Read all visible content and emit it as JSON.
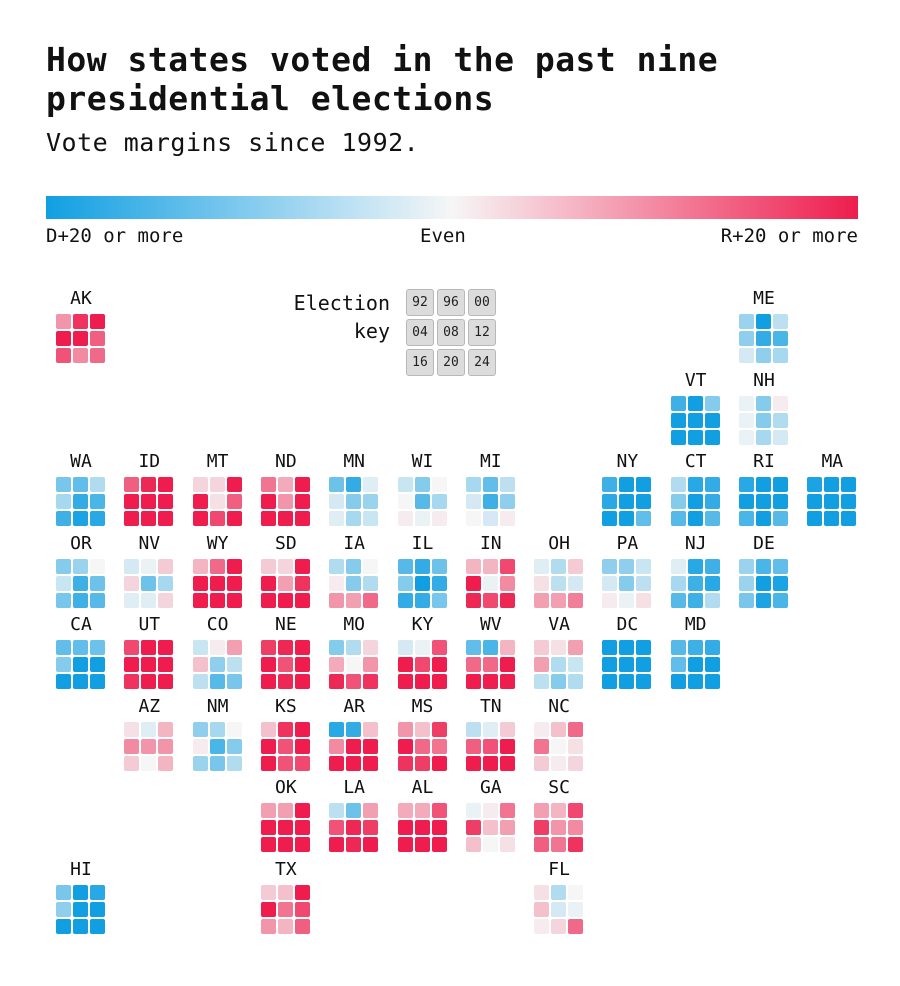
{
  "title": "How states voted in the past nine presidential elections",
  "subtitle": "Vote margins since 1992.",
  "legend": {
    "left": "D+20 or more",
    "middle": "Even",
    "right": "R+20 or more"
  },
  "key": {
    "label_line1": "Election",
    "label_line2": "key",
    "years": [
      "92",
      "96",
      "00",
      "04",
      "08",
      "12",
      "16",
      "20",
      "24"
    ]
  },
  "colors": {
    "dem": "#119fe2",
    "even": "#f6f6f6",
    "rep": "#ee1d4d"
  },
  "chart_data": {
    "type": "heatmap",
    "title": "How states voted in the past nine presidential elections",
    "subtitle": "Vote margins since 1992.",
    "value_unit": "margin (negative = D, positive = R), clamped at ±20",
    "years": [
      1992,
      1996,
      2000,
      2004,
      2008,
      2012,
      2016,
      2020,
      2024
    ],
    "states": [
      {
        "abbr": "AK",
        "col": 0,
        "row": 0,
        "margins": [
          9,
          18,
          20,
          20,
          20,
          14,
          15,
          10,
          13
        ]
      },
      {
        "abbr": "ME",
        "col": 10,
        "row": 0,
        "margins": [
          -8,
          -20,
          -5,
          -9,
          -17,
          -15,
          -3,
          -9,
          -7
        ]
      },
      {
        "abbr": "VT",
        "col": 9,
        "row": 1,
        "margins": [
          -16,
          -22,
          -10,
          -20,
          -37,
          -36,
          -26,
          -35,
          -32
        ]
      },
      {
        "abbr": "NH",
        "col": 10,
        "row": 1,
        "margins": [
          -1,
          -10,
          1,
          -1,
          -10,
          -6,
          -1,
          -7,
          -3
        ]
      },
      {
        "abbr": "WA",
        "col": 0,
        "row": 2,
        "margins": [
          -11,
          -13,
          -6,
          -7,
          -17,
          -15,
          -16,
          -19,
          -18
        ]
      },
      {
        "abbr": "ID",
        "col": 1,
        "row": 2,
        "margins": [
          14,
          19,
          40,
          38,
          25,
          32,
          32,
          31,
          36
        ]
      },
      {
        "abbr": "MT",
        "col": 2,
        "row": 2,
        "margins": [
          3,
          3,
          25,
          20,
          2,
          14,
          20,
          16,
          20
        ]
      },
      {
        "abbr": "ND",
        "col": 3,
        "row": 2,
        "margins": [
          12,
          7,
          28,
          27,
          9,
          20,
          36,
          33,
          36
        ]
      },
      {
        "abbr": "MN",
        "col": 4,
        "row": 2,
        "margins": [
          -12,
          -17,
          -2,
          -3,
          -10,
          -8,
          -2,
          -7,
          -4
        ]
      },
      {
        "abbr": "WI",
        "col": 5,
        "row": 2,
        "margins": [
          -4,
          -10,
          0,
          0,
          -14,
          -7,
          1,
          -1,
          1
        ]
      },
      {
        "abbr": "MI",
        "col": 6,
        "row": 2,
        "margins": [
          -7,
          -13,
          -5,
          -3,
          -16,
          -9,
          0,
          -3,
          1
        ]
      },
      {
        "abbr": "NY",
        "col": 8,
        "row": 2,
        "margins": [
          -16,
          -29,
          -25,
          -18,
          -27,
          -28,
          -22,
          -23,
          -13
        ]
      },
      {
        "abbr": "CT",
        "col": 9,
        "row": 2,
        "margins": [
          -6,
          -18,
          -17,
          -10,
          -22,
          -17,
          -14,
          -20,
          -14
        ]
      },
      {
        "abbr": "RI",
        "col": 10,
        "row": 2,
        "margins": [
          -18,
          -33,
          -29,
          -20,
          -28,
          -27,
          -15,
          -21,
          -14
        ]
      },
      {
        "abbr": "MA",
        "col": 11,
        "row": 2,
        "margins": [
          -19,
          -33,
          -27,
          -25,
          -26,
          -23,
          -27,
          -33,
          -25
        ]
      },
      {
        "abbr": "OR",
        "col": 0,
        "row": 3,
        "margins": [
          -10,
          -8,
          0,
          -4,
          -16,
          -12,
          -11,
          -16,
          -14
        ]
      },
      {
        "abbr": "NV",
        "col": 1,
        "row": 3,
        "margins": [
          -3,
          -1,
          4,
          3,
          -12,
          -7,
          -2,
          -2,
          3
        ]
      },
      {
        "abbr": "WY",
        "col": 2,
        "row": 3,
        "margins": [
          6,
          13,
          41,
          40,
          32,
          41,
          46,
          43,
          46
        ]
      },
      {
        "abbr": "SD",
        "col": 3,
        "row": 3,
        "margins": [
          4,
          3,
          23,
          21,
          8,
          18,
          30,
          26,
          29
        ]
      },
      {
        "abbr": "IA",
        "col": 4,
        "row": 3,
        "margins": [
          -6,
          -10,
          0,
          1,
          -10,
          -6,
          9,
          8,
          13
        ]
      },
      {
        "abbr": "IL",
        "col": 5,
        "row": 3,
        "margins": [
          -14,
          -17,
          -12,
          -10,
          -25,
          -17,
          -17,
          -17,
          -11
        ]
      },
      {
        "abbr": "IN",
        "col": 6,
        "row": 3,
        "margins": [
          6,
          6,
          16,
          21,
          -1,
          10,
          19,
          16,
          19
        ]
      },
      {
        "abbr": "OH",
        "col": 7,
        "row": 3,
        "margins": [
          -2,
          -6,
          4,
          2,
          -5,
          -3,
          8,
          8,
          11
        ]
      },
      {
        "abbr": "PA",
        "col": 8,
        "row": 3,
        "margins": [
          -9,
          -9,
          -4,
          -3,
          -10,
          -5,
          1,
          -1,
          2
        ]
      },
      {
        "abbr": "NJ",
        "col": 9,
        "row": 3,
        "margins": [
          -2,
          -18,
          -16,
          -7,
          -16,
          -18,
          -14,
          -16,
          -6
        ]
      },
      {
        "abbr": "DE",
        "col": 10,
        "row": 3,
        "margins": [
          -8,
          -15,
          -13,
          -8,
          -25,
          -19,
          -11,
          -19,
          -15
        ]
      },
      {
        "abbr": "CA",
        "col": 0,
        "row": 4,
        "margins": [
          -13,
          -13,
          -12,
          -10,
          -24,
          -23,
          -30,
          -29,
          -20
        ]
      },
      {
        "abbr": "UT",
        "col": 1,
        "row": 4,
        "margins": [
          16,
          21,
          41,
          46,
          28,
          48,
          18,
          20,
          22
        ]
      },
      {
        "abbr": "CO",
        "col": 2,
        "row": 4,
        "margins": [
          -4,
          1,
          8,
          5,
          -9,
          -5,
          -5,
          -14,
          -11
        ]
      },
      {
        "abbr": "NE",
        "col": 3,
        "row": 4,
        "margins": [
          17,
          19,
          29,
          33,
          15,
          22,
          25,
          19,
          21
        ]
      },
      {
        "abbr": "MO",
        "col": 4,
        "row": 4,
        "margins": [
          -10,
          -6,
          3,
          7,
          0,
          9,
          19,
          15,
          18
        ]
      },
      {
        "abbr": "KY",
        "col": 5,
        "row": 4,
        "margins": [
          -3,
          -1,
          15,
          20,
          16,
          23,
          30,
          26,
          31
        ]
      },
      {
        "abbr": "WV",
        "col": 6,
        "row": 4,
        "margins": [
          -13,
          -15,
          6,
          13,
          13,
          27,
          42,
          39,
          42
        ]
      },
      {
        "abbr": "VA",
        "col": 7,
        "row": 4,
        "margins": [
          4,
          2,
          8,
          8,
          -6,
          -4,
          -5,
          -10,
          -6
        ]
      },
      {
        "abbr": "DC",
        "col": 8,
        "row": 4,
        "margins": [
          -76,
          -76,
          -76,
          -80,
          -86,
          -84,
          -87,
          -87,
          -84
        ]
      },
      {
        "abbr": "MD",
        "col": 9,
        "row": 4,
        "margins": [
          -14,
          -16,
          -17,
          -13,
          -25,
          -26,
          -26,
          -33,
          -29
        ]
      },
      {
        "abbr": "AZ",
        "col": 1,
        "row": 5,
        "margins": [
          2,
          -2,
          6,
          10,
          9,
          9,
          4,
          0,
          6
        ]
      },
      {
        "abbr": "NM",
        "col": 2,
        "row": 5,
        "margins": [
          -9,
          -7,
          0,
          1,
          -15,
          -10,
          -8,
          -11,
          -6
        ]
      },
      {
        "abbr": "KS",
        "col": 3,
        "row": 5,
        "margins": [
          5,
          18,
          21,
          25,
          15,
          22,
          21,
          15,
          16
        ]
      },
      {
        "abbr": "AR",
        "col": 4,
        "row": 5,
        "margins": [
          -18,
          -17,
          5,
          10,
          20,
          24,
          27,
          28,
          31
        ]
      },
      {
        "abbr": "MS",
        "col": 5,
        "row": 5,
        "margins": [
          9,
          5,
          17,
          20,
          13,
          12,
          18,
          17,
          23
        ]
      },
      {
        "abbr": "TN",
        "col": 6,
        "row": 5,
        "margins": [
          -5,
          -2,
          4,
          14,
          15,
          20,
          26,
          23,
          30
        ]
      },
      {
        "abbr": "NC",
        "col": 7,
        "row": 5,
        "margins": [
          1,
          5,
          13,
          12,
          0,
          2,
          4,
          1,
          3
        ]
      },
      {
        "abbr": "OK",
        "col": 3,
        "row": 6,
        "margins": [
          8,
          8,
          22,
          31,
          31,
          34,
          36,
          33,
          34
        ]
      },
      {
        "abbr": "LA",
        "col": 4,
        "row": 6,
        "margins": [
          -5,
          -12,
          8,
          15,
          19,
          17,
          20,
          19,
          22
        ]
      },
      {
        "abbr": "AL",
        "col": 5,
        "row": 6,
        "margins": [
          7,
          7,
          15,
          26,
          22,
          22,
          28,
          25,
          31
        ]
      },
      {
        "abbr": "GA",
        "col": 6,
        "row": 6,
        "margins": [
          -1,
          1,
          12,
          17,
          5,
          8,
          5,
          0,
          2
        ]
      },
      {
        "abbr": "SC",
        "col": 7,
        "row": 6,
        "margins": [
          8,
          6,
          16,
          17,
          9,
          10,
          14,
          12,
          18
        ]
      },
      {
        "abbr": "HI",
        "col": 0,
        "row": 7,
        "margins": [
          -11,
          -25,
          -18,
          -9,
          -45,
          -43,
          -32,
          -29,
          -23
        ]
      },
      {
        "abbr": "TX",
        "col": 3,
        "row": 7,
        "margins": [
          4,
          5,
          21,
          23,
          12,
          16,
          9,
          6,
          14
        ]
      },
      {
        "abbr": "FL",
        "col": 7,
        "row": 7,
        "margins": [
          2,
          -6,
          0,
          5,
          -3,
          -1,
          1,
          3,
          13
        ]
      }
    ]
  }
}
